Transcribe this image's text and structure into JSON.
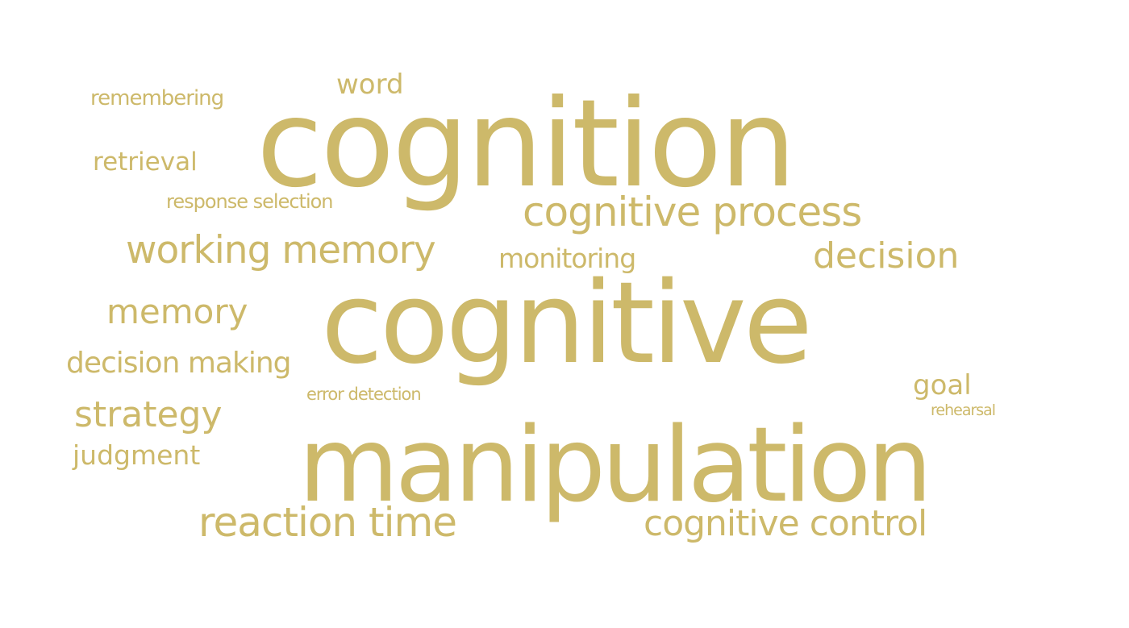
{
  "word_color": "#cdb96a",
  "words": {
    "cognition": "cognition",
    "cognitive": "cognitive",
    "manipulation": "manipulation",
    "cognitive_process": "cognitive process",
    "working_memory": "working memory",
    "reaction_time": "reaction time",
    "cognitive_control": "cognitive control",
    "decision": "decision",
    "memory": "memory",
    "decision_making": "decision making",
    "strategy": "strategy",
    "judgment": "judgment",
    "monitoring": "monitoring",
    "retrieval": "retrieval",
    "remembering": "remembering",
    "word": "word",
    "response_selection": "response selection",
    "goal": "goal",
    "error_detection": "error detection",
    "rehearsal": "rehearsal"
  }
}
